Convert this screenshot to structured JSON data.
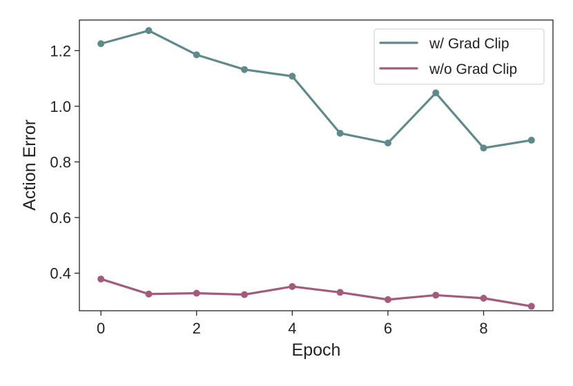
{
  "chart_data": {
    "type": "line",
    "title": "",
    "xlabel": "Epoch",
    "ylabel": "Action Error",
    "x": [
      0,
      1,
      2,
      3,
      4,
      5,
      6,
      7,
      8,
      9
    ],
    "xlim": [
      -0.45,
      9.45
    ],
    "ylim": [
      0.265,
      1.31
    ],
    "xticks": [
      0,
      2,
      4,
      6,
      8
    ],
    "xtick_labels": [
      "0",
      "2",
      "4",
      "6",
      "8"
    ],
    "yticks": [
      0.4,
      0.6,
      0.8,
      1.0,
      1.2
    ],
    "ytick_labels": [
      "0.4",
      "0.6",
      "0.8",
      "1.0",
      "1.2"
    ],
    "grid": false,
    "legend_position": "top-right",
    "series": [
      {
        "name": "w/ Grad Clip",
        "color": "#5f8a8b",
        "values": [
          1.225,
          1.272,
          1.185,
          1.132,
          1.108,
          0.903,
          0.868,
          1.048,
          0.85,
          0.878
        ]
      },
      {
        "name": "w/o Grad Clip",
        "color": "#a35b7c",
        "values": [
          0.379,
          0.325,
          0.328,
          0.323,
          0.352,
          0.331,
          0.305,
          0.321,
          0.31,
          0.281
        ]
      }
    ]
  }
}
